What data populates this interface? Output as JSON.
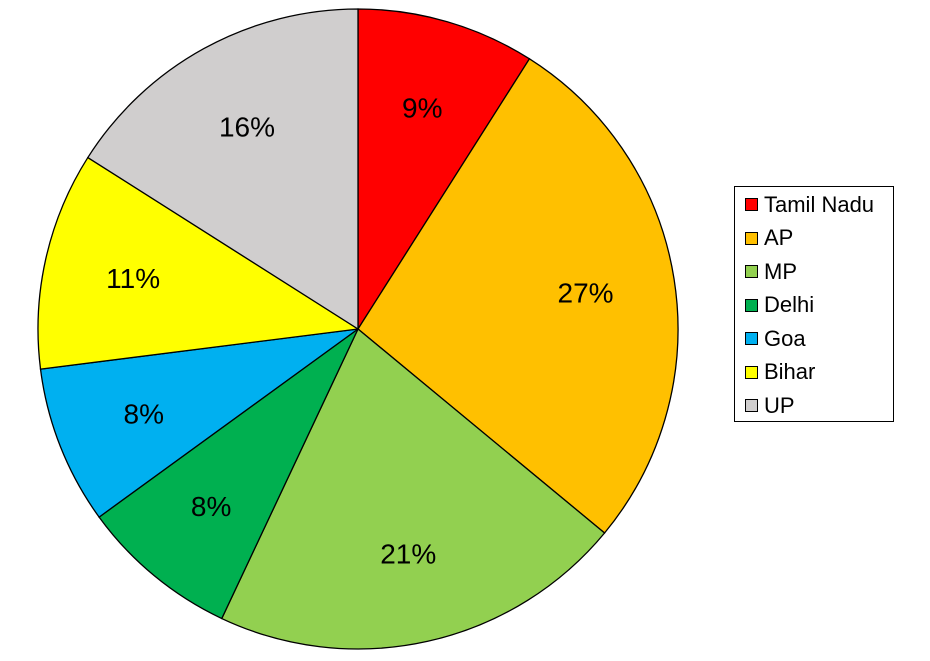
{
  "chart_data": {
    "type": "pie",
    "title": "",
    "categories": [
      "Tamil Nadu",
      "AP",
      "MP",
      "Delhi",
      "Goa",
      "Bihar",
      "UP"
    ],
    "values": [
      9,
      27,
      21,
      8,
      8,
      11,
      16
    ],
    "labels": [
      "9%",
      "27%",
      "21%",
      "8%",
      "8%",
      "11%",
      "16%"
    ],
    "colors": [
      "#FF0000",
      "#FFC000",
      "#92D050",
      "#00B050",
      "#00B0F0",
      "#FFFF00",
      "#D0CECE"
    ],
    "start_angle": "12 o'clock",
    "direction": "clockwise",
    "legend_position": "right"
  },
  "legend": {
    "items": [
      {
        "label": "Tamil Nadu",
        "color": "#FF0000"
      },
      {
        "label": "AP",
        "color": "#FFC000"
      },
      {
        "label": "MP",
        "color": "#92D050"
      },
      {
        "label": "Delhi",
        "color": "#00B050"
      },
      {
        "label": "Goa",
        "color": "#00B0F0"
      },
      {
        "label": "Bihar",
        "color": "#FFFF00"
      },
      {
        "label": "UP",
        "color": "#D0CECE"
      }
    ]
  }
}
